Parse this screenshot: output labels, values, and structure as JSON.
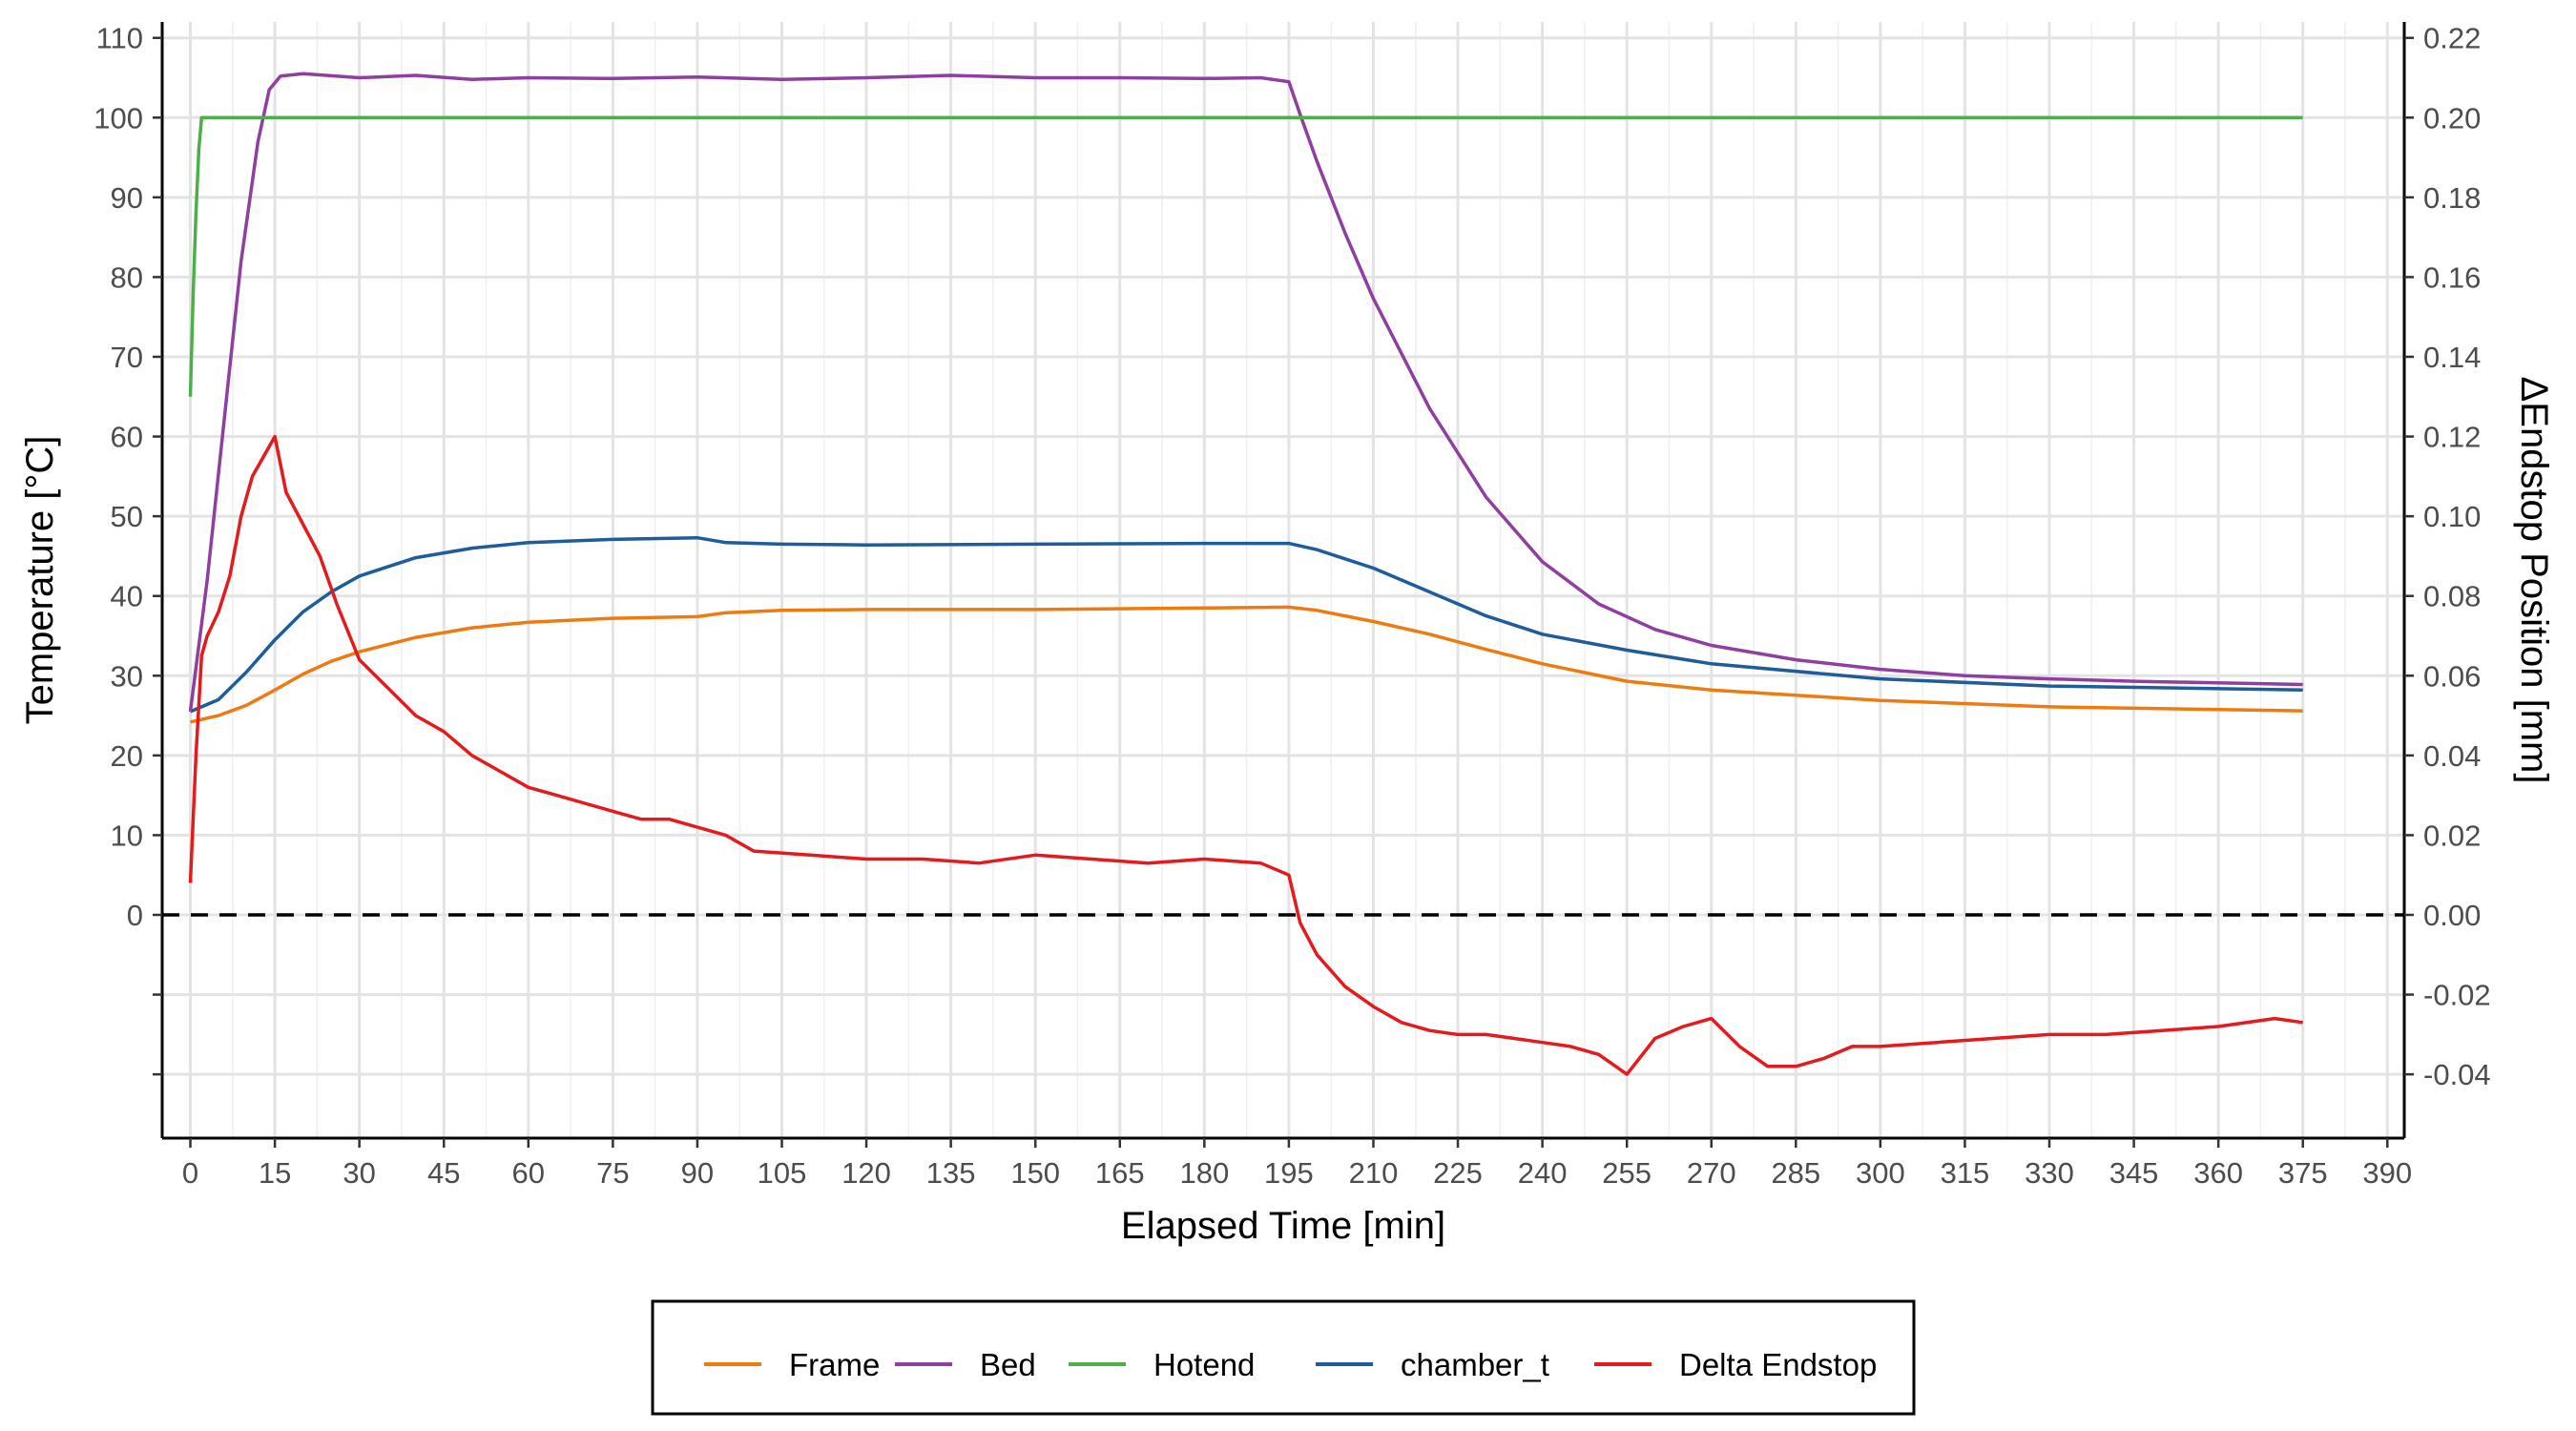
{
  "chart_data": {
    "type": "line",
    "xlabel": "Elapsed Time [min]",
    "ylabel": "Temperature [°C]",
    "y2label": "ΔEndstop Position [mm]",
    "xlim": [
      -5,
      393
    ],
    "ylim": [
      -28,
      112
    ],
    "y2lim": [
      -0.056,
      0.224
    ],
    "x_ticks": [
      0,
      15,
      30,
      45,
      60,
      75,
      90,
      105,
      120,
      135,
      150,
      165,
      180,
      195,
      210,
      225,
      240,
      255,
      270,
      285,
      300,
      315,
      330,
      345,
      360,
      375,
      390
    ],
    "y_ticks": [
      0,
      10,
      20,
      30,
      40,
      50,
      60,
      70,
      80,
      90,
      100,
      110
    ],
    "y2_ticks": [
      "-0.04",
      "-0.02",
      "0.00",
      "0.02",
      "0.04",
      "0.06",
      "0.08",
      "0.10",
      "0.12",
      "0.14",
      "0.16",
      "0.18",
      "0.20",
      "0.22"
    ],
    "grid": true,
    "legend_position": "bottom",
    "reference_line": {
      "y": 0,
      "style": "dashed"
    },
    "series": [
      {
        "name": "Frame",
        "color": "#ef7b10",
        "axis": "left",
        "x": [
          0,
          5,
          10,
          15,
          20,
          25,
          30,
          40,
          50,
          60,
          75,
          90,
          95,
          105,
          120,
          150,
          180,
          195,
          200,
          210,
          220,
          230,
          240,
          255,
          270,
          300,
          330,
          375
        ],
        "y": [
          24.2,
          25,
          26.3,
          28.2,
          30.2,
          31.8,
          33,
          34.8,
          36,
          36.7,
          37.2,
          37.4,
          37.9,
          38.2,
          38.3,
          38.3,
          38.5,
          38.6,
          38.2,
          36.8,
          35.2,
          33.3,
          31.5,
          29.3,
          28.2,
          26.9,
          26.1,
          25.6
        ]
      },
      {
        "name": "Bed",
        "color": "#8e3fa0",
        "axis": "left",
        "x": [
          0,
          3,
          6,
          9,
          12,
          14,
          16,
          20,
          30,
          40,
          50,
          60,
          75,
          90,
          105,
          120,
          135,
          150,
          165,
          180,
          190,
          195,
          197,
          200,
          205,
          210,
          220,
          230,
          240,
          250,
          260,
          270,
          285,
          300,
          315,
          330,
          345,
          375
        ],
        "y": [
          25.5,
          42,
          62,
          82,
          97,
          103.5,
          105.2,
          105.5,
          105,
          105.3,
          104.8,
          105,
          104.9,
          105.1,
          104.8,
          105,
          105.3,
          105,
          105,
          104.9,
          105,
          104.5,
          100.4,
          94.5,
          85.5,
          77.3,
          63.5,
          52.4,
          44.3,
          39,
          35.8,
          33.8,
          32,
          30.8,
          30,
          29.6,
          29.3,
          28.9
        ]
      },
      {
        "name": "Hotend",
        "color": "#4daf4a",
        "axis": "left",
        "x": [
          0,
          0.5,
          1,
          1.5,
          2,
          5,
          100,
          200,
          300,
          375
        ],
        "y": [
          65,
          78,
          88,
          96,
          100,
          100,
          100,
          100,
          100,
          100
        ]
      },
      {
        "name": "chamber_t",
        "color": "#1f5c9a",
        "axis": "left",
        "x": [
          0,
          5,
          10,
          15,
          20,
          25,
          30,
          40,
          50,
          60,
          75,
          90,
          95,
          105,
          120,
          150,
          180,
          195,
          200,
          210,
          220,
          230,
          240,
          255,
          270,
          300,
          330,
          375
        ],
        "y": [
          25.5,
          27,
          30.5,
          34.5,
          38,
          40.5,
          42.5,
          44.8,
          46,
          46.7,
          47.1,
          47.3,
          46.7,
          46.5,
          46.4,
          46.5,
          46.6,
          46.6,
          45.8,
          43.5,
          40.5,
          37.5,
          35.2,
          33.2,
          31.5,
          29.6,
          28.7,
          28.2
        ]
      },
      {
        "name": "Delta Endstop",
        "color": "#e41a1c",
        "axis": "right",
        "x": [
          0,
          1,
          2,
          3,
          5,
          7,
          9,
          11,
          13,
          15,
          17,
          20,
          23,
          26,
          30,
          35,
          40,
          45,
          50,
          55,
          60,
          65,
          70,
          75,
          80,
          85,
          90,
          95,
          100,
          110,
          120,
          130,
          140,
          150,
          160,
          170,
          180,
          190,
          195,
          197,
          200,
          205,
          210,
          215,
          220,
          225,
          230,
          235,
          240,
          245,
          250,
          255,
          260,
          265,
          270,
          275,
          280,
          285,
          290,
          295,
          300,
          310,
          320,
          330,
          340,
          350,
          360,
          370,
          375
        ],
        "y": [
          0.008,
          0.04,
          0.065,
          0.07,
          0.076,
          0.085,
          0.1,
          0.11,
          0.115,
          0.12,
          0.106,
          0.098,
          0.09,
          0.078,
          0.064,
          0.057,
          0.05,
          0.046,
          0.04,
          0.036,
          0.032,
          0.03,
          0.028,
          0.026,
          0.024,
          0.024,
          0.022,
          0.02,
          0.016,
          0.015,
          0.014,
          0.014,
          0.013,
          0.015,
          0.014,
          0.013,
          0.014,
          0.013,
          0.01,
          -0.002,
          -0.01,
          -0.018,
          -0.023,
          -0.027,
          -0.029,
          -0.03,
          -0.03,
          -0.031,
          -0.032,
          -0.033,
          -0.035,
          -0.04,
          -0.031,
          -0.028,
          -0.026,
          -0.033,
          -0.038,
          -0.038,
          -0.036,
          -0.033,
          -0.033,
          -0.032,
          -0.031,
          -0.03,
          -0.03,
          -0.029,
          -0.028,
          -0.026,
          -0.027
        ]
      }
    ]
  }
}
